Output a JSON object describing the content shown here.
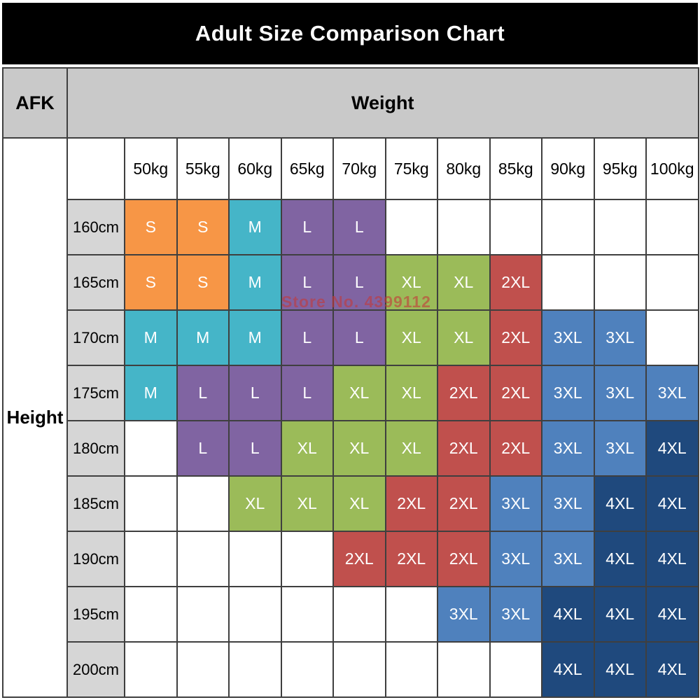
{
  "title": "Adult Size Comparison Chart",
  "corner": {
    "brand": "AFK"
  },
  "axes": {
    "weight_label": "Weight",
    "height_label": "Height"
  },
  "watermark": "Store No. 4399112",
  "colors": {
    "sizes": {
      "S": "#F79646",
      "M": "#45B5C8",
      "L": "#8064A2",
      "XL": "#9BBB59",
      "2XL": "#C0504D",
      "3XL": "#4F81BD",
      "4XL": "#1F497D"
    },
    "title_bg": "#000000",
    "header_bg": "#C9C9C9",
    "row_label_bg": "#D6D6D6",
    "watermark_color": "#C43A3A"
  },
  "chart_data": {
    "type": "table",
    "title": "Adult Size Comparison Chart",
    "xlabel": "Weight",
    "ylabel": "Height",
    "columns": [
      "50kg",
      "55kg",
      "60kg",
      "65kg",
      "70kg",
      "75kg",
      "80kg",
      "85kg",
      "90kg",
      "95kg",
      "100kg"
    ],
    "rows": [
      {
        "height": "160cm",
        "cells": [
          "S",
          "S",
          "M",
          "L",
          "L",
          "",
          "",
          "",
          "",
          "",
          ""
        ]
      },
      {
        "height": "165cm",
        "cells": [
          "S",
          "S",
          "M",
          "L",
          "L",
          "XL",
          "XL",
          "2XL",
          "",
          "",
          ""
        ]
      },
      {
        "height": "170cm",
        "cells": [
          "M",
          "M",
          "M",
          "L",
          "L",
          "XL",
          "XL",
          "2XL",
          "3XL",
          "3XL",
          ""
        ]
      },
      {
        "height": "175cm",
        "cells": [
          "M",
          "L",
          "L",
          "L",
          "XL",
          "XL",
          "2XL",
          "2XL",
          "3XL",
          "3XL",
          "3XL"
        ]
      },
      {
        "height": "180cm",
        "cells": [
          "",
          "L",
          "L",
          "XL",
          "XL",
          "XL",
          "2XL",
          "2XL",
          "3XL",
          "3XL",
          "4XL"
        ]
      },
      {
        "height": "185cm",
        "cells": [
          "",
          "",
          "XL",
          "XL",
          "XL",
          "2XL",
          "2XL",
          "3XL",
          "3XL",
          "4XL",
          "4XL"
        ]
      },
      {
        "height": "190cm",
        "cells": [
          "",
          "",
          "",
          "",
          "2XL",
          "2XL",
          "2XL",
          "3XL",
          "3XL",
          "4XL",
          "4XL"
        ]
      },
      {
        "height": "195cm",
        "cells": [
          "",
          "",
          "",
          "",
          "",
          "",
          "3XL",
          "3XL",
          "4XL",
          "4XL",
          "4XL"
        ]
      },
      {
        "height": "200cm",
        "cells": [
          "",
          "",
          "",
          "",
          "",
          "",
          "",
          "",
          "4XL",
          "4XL",
          "4XL"
        ]
      }
    ]
  }
}
